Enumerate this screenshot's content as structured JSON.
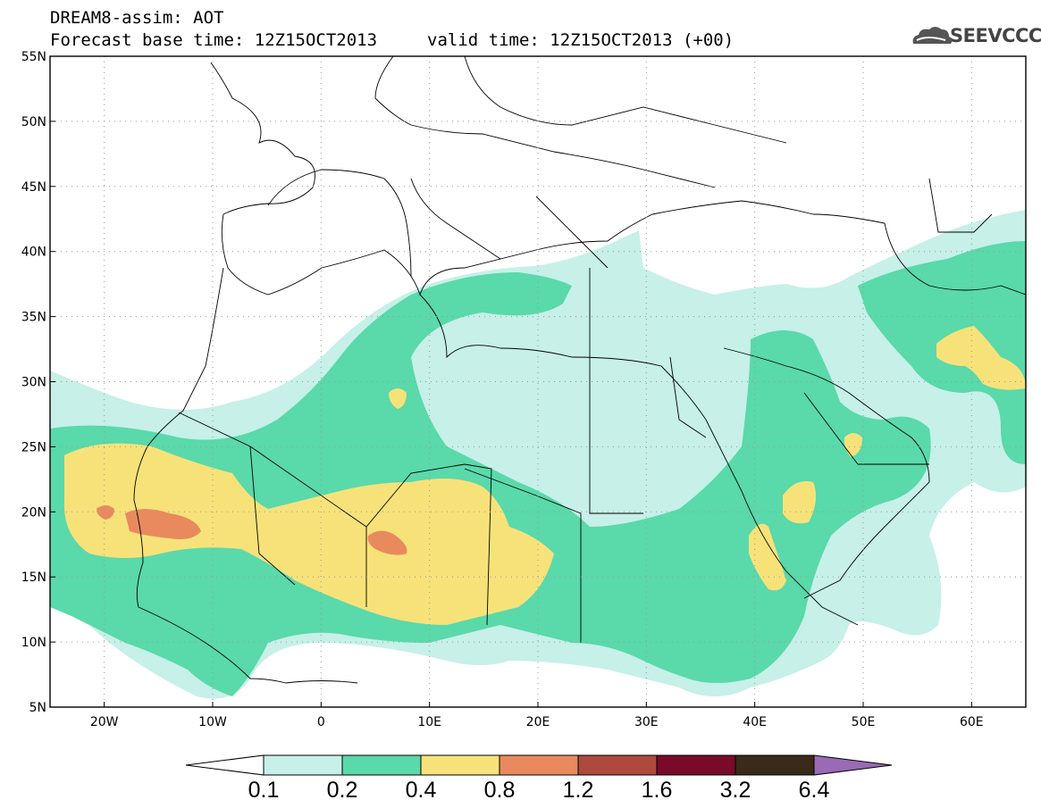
{
  "title": {
    "line1": "DREAM8-assim: AOT",
    "line2": "Forecast base time: 12Z15OCT2013",
    "valid": "valid time: 12Z15OCT2013 (+00)"
  },
  "logo": {
    "text": "SEEVCCC",
    "icon": "cloud-icon"
  },
  "map": {
    "lat_range": [
      5,
      55
    ],
    "lon_range": [
      -25,
      65
    ],
    "lat_ticks": [
      "55N",
      "50N",
      "45N",
      "40N",
      "35N",
      "30N",
      "25N",
      "20N",
      "15N",
      "10N",
      "5N"
    ],
    "lon_ticks": [
      "20W",
      "10W",
      "0",
      "10E",
      "20E",
      "30E",
      "40E",
      "50E",
      "60E"
    ],
    "grid": "dotted"
  },
  "colorbar": {
    "levels": [
      "0.1",
      "0.2",
      "0.4",
      "0.8",
      "1.2",
      "1.6",
      "3.2",
      "6.4"
    ],
    "colors": [
      "#ffffff",
      "#c6f0e8",
      "#5ad9aa",
      "#f7e27a",
      "#e88a5e",
      "#ad4a3d",
      "#7a0a2a",
      "#3a2a1a",
      "#9a6ab4"
    ]
  }
}
